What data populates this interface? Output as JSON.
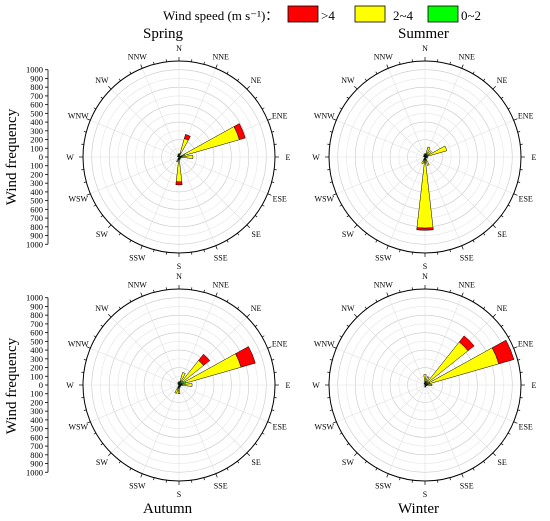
{
  "legend": {
    "title": "Wind speed (m s⁻¹)：",
    "items": [
      {
        "label": ">4",
        "color": "#ff0000"
      },
      {
        "label": "2~4",
        "color": "#ffff00"
      },
      {
        "label": "0~2",
        "color": "#00ff00"
      }
    ]
  },
  "y_axis_label": "Wind frequency",
  "directions": [
    "N",
    "NNE",
    "NE",
    "ENE",
    "E",
    "ESE",
    "SE",
    "SSE",
    "S",
    "SSW",
    "SW",
    "WSW",
    "W",
    "WNW",
    "NW",
    "NNW"
  ],
  "radial_ticks": [
    "1000",
    "900",
    "800",
    "700",
    "600",
    "500",
    "400",
    "300",
    "200",
    "100",
    "0",
    "100",
    "200",
    "300",
    "400",
    "500",
    "600",
    "700",
    "800",
    "900",
    "1000"
  ],
  "chart_data": [
    {
      "type": "polar-bar",
      "title": "Spring",
      "rmax": 1100,
      "series_order": [
        "0~2",
        "2~4",
        ">4"
      ],
      "sectors": [
        {
          "direction": "NNE",
          "values": [
            50,
            170,
            50
          ]
        },
        {
          "direction": "ENE",
          "values": [
            70,
            650,
            70
          ]
        },
        {
          "direction": "E",
          "values": [
            40,
            120,
            0
          ]
        },
        {
          "direction": "S",
          "values": [
            40,
            245,
            35
          ]
        },
        {
          "direction": "SSW",
          "values": [
            30,
            30,
            0
          ]
        },
        {
          "direction": "N",
          "values": [
            40,
            0,
            0
          ]
        },
        {
          "direction": "NNW",
          "values": [
            30,
            0,
            0
          ]
        },
        {
          "direction": "NW",
          "values": [
            20,
            0,
            0
          ]
        },
        {
          "direction": "WNW",
          "values": [
            20,
            0,
            0
          ]
        },
        {
          "direction": "ESE",
          "values": [
            25,
            0,
            0
          ]
        },
        {
          "direction": "SE",
          "values": [
            25,
            0,
            0
          ]
        },
        {
          "direction": "SSE",
          "values": [
            30,
            0,
            0
          ]
        }
      ]
    },
    {
      "type": "polar-bar",
      "title": "Summer",
      "rmax": 1100,
      "series_order": [
        "0~2",
        "2~4",
        ">4"
      ],
      "sectors": [
        {
          "direction": "S",
          "values": [
            60,
            755,
            25
          ]
        },
        {
          "direction": "ENE",
          "values": [
            40,
            220,
            0
          ]
        },
        {
          "direction": "NNE",
          "values": [
            40,
            80,
            0
          ]
        },
        {
          "direction": "NE",
          "values": [
            35,
            60,
            0
          ]
        },
        {
          "direction": "SSE",
          "values": [
            40,
            60,
            0
          ]
        },
        {
          "direction": "SSW",
          "values": [
            40,
            40,
            0
          ]
        },
        {
          "direction": "N",
          "values": [
            40,
            0,
            0
          ]
        },
        {
          "direction": "NNW",
          "values": [
            30,
            0,
            0
          ]
        },
        {
          "direction": "NW",
          "values": [
            20,
            0,
            0
          ]
        },
        {
          "direction": "WNW",
          "values": [
            20,
            0,
            0
          ]
        },
        {
          "direction": "E",
          "values": [
            30,
            0,
            0
          ]
        },
        {
          "direction": "ESE",
          "values": [
            30,
            0,
            0
          ]
        }
      ]
    },
    {
      "type": "polar-bar",
      "title": "Autumn",
      "rmax": 1100,
      "series_order": [
        "0~2",
        "2~4",
        ">4"
      ],
      "sectors": [
        {
          "direction": "ENE",
          "values": [
            80,
            660,
            170
          ]
        },
        {
          "direction": "NE",
          "values": [
            60,
            300,
            90
          ]
        },
        {
          "direction": "NNE",
          "values": [
            50,
            100,
            0
          ]
        },
        {
          "direction": "E",
          "values": [
            40,
            110,
            0
          ]
        },
        {
          "direction": "S",
          "values": [
            40,
            60,
            0
          ]
        },
        {
          "direction": "SSW",
          "values": [
            30,
            70,
            0
          ]
        },
        {
          "direction": "N",
          "values": [
            40,
            0,
            0
          ]
        },
        {
          "direction": "NNW",
          "values": [
            30,
            0,
            0
          ]
        },
        {
          "direction": "NW",
          "values": [
            20,
            0,
            0
          ]
        },
        {
          "direction": "ESE",
          "values": [
            25,
            0,
            0
          ]
        },
        {
          "direction": "SE",
          "values": [
            25,
            0,
            0
          ]
        },
        {
          "direction": "SSE",
          "values": [
            30,
            0,
            0
          ]
        }
      ]
    },
    {
      "type": "polar-bar",
      "title": "Winter",
      "rmax": 1100,
      "series_order": [
        "0~2",
        "2~4",
        ">4"
      ],
      "sectors": [
        {
          "direction": "ENE",
          "values": [
            60,
            820,
            180
          ]
        },
        {
          "direction": "NE",
          "values": [
            50,
            580,
            90
          ]
        },
        {
          "direction": "NNE",
          "values": [
            40,
            60,
            0
          ]
        },
        {
          "direction": "N",
          "values": [
            40,
            80,
            0
          ]
        },
        {
          "direction": "E",
          "values": [
            30,
            50,
            0
          ]
        },
        {
          "direction": "NNW",
          "values": [
            25,
            0,
            0
          ]
        },
        {
          "direction": "SSE",
          "values": [
            25,
            0,
            0
          ]
        },
        {
          "direction": "S",
          "values": [
            25,
            0,
            0
          ]
        },
        {
          "direction": "ESE",
          "values": [
            20,
            0,
            0
          ]
        }
      ]
    }
  ]
}
